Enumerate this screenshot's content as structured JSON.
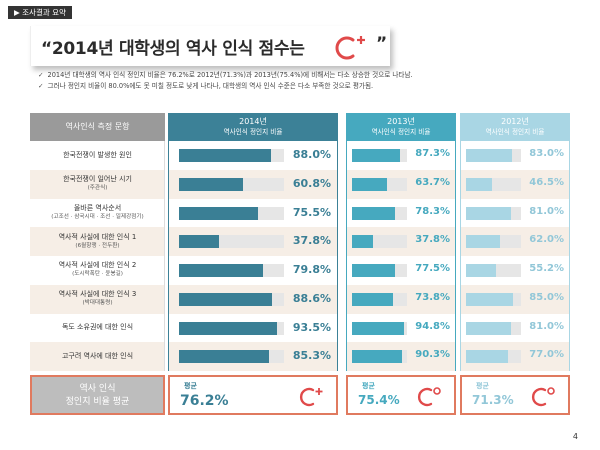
{
  "section_tag": "▶ 조사결과 요약",
  "headline": {
    "text": "“2014년 대학생의 역사 인식 점수는",
    "quote_close": "”",
    "grade": "C+"
  },
  "notes": [
    "2014년 대학생의 역사 인식 정인지 비율은 76.2%로 2012년(71.3%)과 2013년(75.4%)에 비해서는 다소 상승한 것으로 나타남.",
    "그러나 정인지 비율이 80.0%에도 못 미칠 정도로 낮게 나타나, 대학생의 역사 인식 수준은 다소 부족한 것으로 평가됨."
  ],
  "check_icon": "✓",
  "table": {
    "label_header": "역사인식 측정 문항",
    "columns": [
      {
        "year": "2014년",
        "sub": "역사인식 정인지 비율",
        "color": "#3a7f95"
      },
      {
        "year": "2013년",
        "sub": "역사인식 정인지 비율",
        "color": "#46a9bf"
      },
      {
        "year": "2012년",
        "sub": "역사인식 정인지 비율",
        "color": "#a9d6e4"
      }
    ],
    "rows": [
      {
        "label": "한국전쟁이 발생한 원인",
        "sub": "",
        "v2014": "88.0%",
        "v2013": "87.3%",
        "v2012": "83.0%"
      },
      {
        "label": "한국전쟁이 일어난 시기",
        "sub": "(주관식)",
        "v2014": "60.8%",
        "v2013": "63.7%",
        "v2012": "46.5%"
      },
      {
        "label": "올바른 역사순서",
        "sub": "(고조선 · 삼국시대 · 조선 · 일제강점기)",
        "v2014": "75.5%",
        "v2013": "78.3%",
        "v2012": "81.0%"
      },
      {
        "label": "역사적 사실에 대한 인식 1",
        "sub": "(6월항쟁 · 전두환)",
        "v2014": "37.8%",
        "v2013": "37.8%",
        "v2012": "62.0%"
      },
      {
        "label": "역사적 사실에 대한 인식 2",
        "sub": "(도시락폭탄 · 윤봉길)",
        "v2014": "79.8%",
        "v2013": "77.5%",
        "v2012": "55.2%"
      },
      {
        "label": "역사적 사실에 대한 인식 3",
        "sub": "(박대대통령)",
        "v2014": "88.6%",
        "v2013": "73.8%",
        "v2012": "85.0%"
      },
      {
        "label": "독도 소유권에 대한 인식",
        "sub": "",
        "v2014": "93.5%",
        "v2013": "94.8%",
        "v2012": "81.0%"
      },
      {
        "label": "고구려 역사에 대한 인식",
        "sub": "",
        "v2014": "85.3%",
        "v2013": "90.3%",
        "v2012": "77.0%"
      }
    ],
    "average": {
      "label_line1": "역사 인식",
      "label_line2": "정인지 비율 평균",
      "title": "평균",
      "v2014": "76.2%",
      "g2014": "C+",
      "v2013": "75.4%",
      "g2013": "C0",
      "v2012": "71.3%",
      "g2012": "C0"
    }
  },
  "grade_color": "#e04a4a",
  "page_number": "4"
}
